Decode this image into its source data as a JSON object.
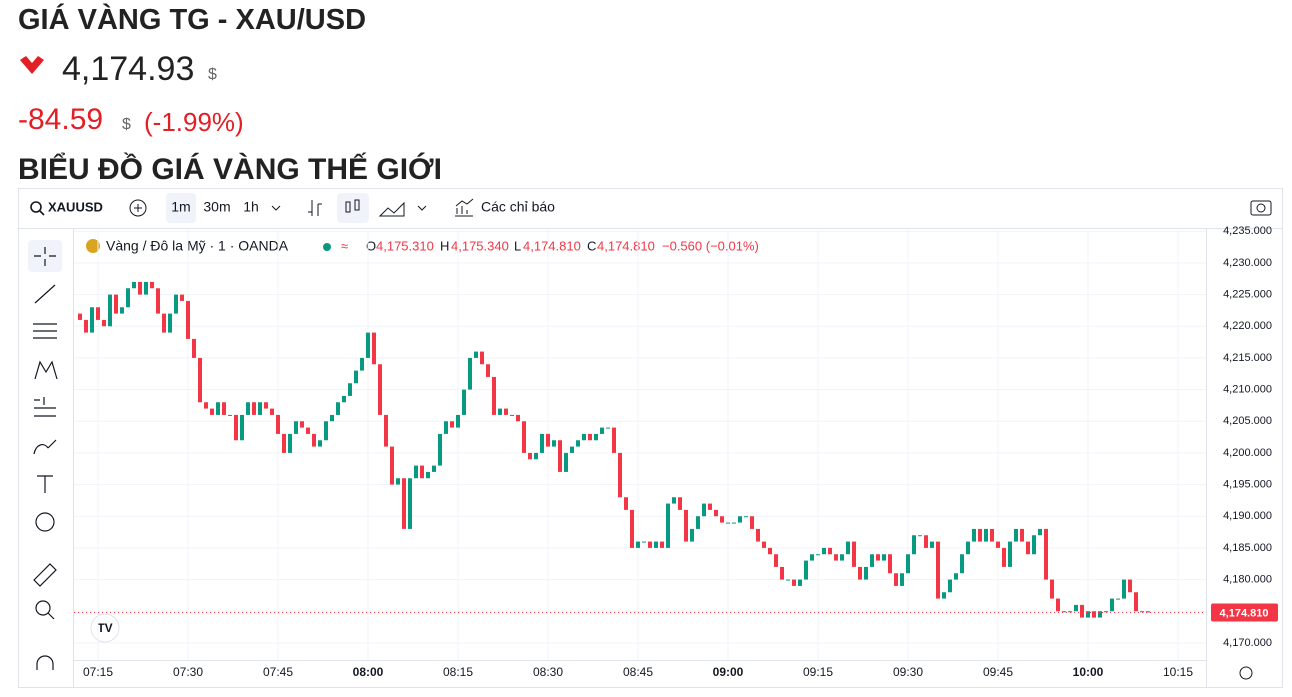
{
  "header": {
    "title": "GIÁ VÀNG TG - XAU/USD",
    "price": "4,174.93",
    "price_unit": "$",
    "change": "-84.59",
    "change_unit": "$",
    "change_pct": "(-1.99%)",
    "section_title": "BIỂU ĐỒ GIÁ VÀNG THẾ GIỚI"
  },
  "toolbar": {
    "symbol": "XAUUSD",
    "intervals": [
      "1m",
      "30m",
      "1h"
    ],
    "indicators": "Các chỉ báo"
  },
  "legend": {
    "instrument": "Vàng / Đô la Mỹ · 1 · OANDA",
    "o_key": "O",
    "o": "4,175.310",
    "h_key": "H",
    "h": "4,175.340",
    "l_key": "L",
    "l": "4,174.810",
    "c_key": "C",
    "c": "4,174.810",
    "change": "−0.560 (−0.01%)"
  },
  "chart_data": {
    "type": "candlestick",
    "up_color": "#089981",
    "down_color": "#f23645",
    "x": [
      "07:12",
      "07:13",
      "07:14",
      "07:15",
      "07:16",
      "07:17",
      "07:18",
      "07:19",
      "07:20",
      "07:21",
      "07:22",
      "07:23",
      "07:24",
      "07:25",
      "07:26",
      "07:27",
      "07:28",
      "07:29",
      "07:30",
      "07:31",
      "07:32",
      "07:33",
      "07:34",
      "07:35",
      "07:36",
      "07:37",
      "07:38",
      "07:39",
      "07:40",
      "07:41",
      "07:42",
      "07:43",
      "07:44",
      "07:45",
      "07:46",
      "07:47",
      "07:48",
      "07:49",
      "07:50",
      "07:51",
      "07:52",
      "07:53",
      "07:54",
      "07:55",
      "07:56",
      "07:57",
      "07:58",
      "07:59",
      "08:00",
      "08:01",
      "08:02",
      "08:03",
      "08:04",
      "08:05",
      "08:06",
      "08:07",
      "08:08",
      "08:09",
      "08:10",
      "08:11",
      "08:12",
      "08:13",
      "08:14",
      "08:15",
      "08:16",
      "08:17",
      "08:18",
      "08:19",
      "08:20",
      "08:21",
      "08:22",
      "08:23",
      "08:24",
      "08:25",
      "08:26",
      "08:27",
      "08:28",
      "08:29",
      "08:30",
      "08:31",
      "08:32",
      "08:33",
      "08:34",
      "08:35",
      "08:36",
      "08:37",
      "08:38",
      "08:39",
      "08:40",
      "08:41",
      "08:42",
      "08:43",
      "08:44",
      "08:45",
      "08:46",
      "08:47",
      "08:48",
      "08:49",
      "08:50",
      "08:51",
      "08:52",
      "08:53",
      "08:54",
      "08:55",
      "08:56",
      "08:57",
      "08:58",
      "08:59",
      "09:00",
      "09:01",
      "09:02",
      "09:03",
      "09:04",
      "09:05",
      "09:06",
      "09:07",
      "09:08",
      "09:09",
      "09:10",
      "09:11",
      "09:12",
      "09:13",
      "09:14",
      "09:15",
      "09:16",
      "09:17",
      "09:18",
      "09:19",
      "09:20",
      "09:21",
      "09:22",
      "09:23",
      "09:24",
      "09:25",
      "09:26",
      "09:27",
      "09:28",
      "09:29",
      "09:30",
      "09:31",
      "09:32",
      "09:33",
      "09:34",
      "09:35",
      "09:36",
      "09:37",
      "09:38",
      "09:39",
      "09:40",
      "09:41",
      "09:42",
      "09:43",
      "09:44",
      "09:45",
      "09:46",
      "09:47",
      "09:48",
      "09:49",
      "09:50",
      "09:51",
      "09:52",
      "09:53",
      "09:54",
      "09:55",
      "09:56",
      "09:57",
      "09:58",
      "09:59",
      "10:00",
      "10:01",
      "10:02",
      "10:03",
      "10:04",
      "10:05",
      "10:06",
      "10:07",
      "10:08",
      "10:09",
      "10:10"
    ],
    "open": [
      4222,
      4221,
      4219,
      4223,
      4221,
      4220,
      4225,
      4222,
      4223,
      4226,
      4227,
      4225,
      4227,
      4226,
      4222,
      4219,
      4222,
      4225,
      4224,
      4218,
      4215,
      4208,
      4207,
      4206,
      4208,
      4206,
      4206,
      4202,
      4206,
      4208,
      4206,
      4208,
      4207,
      4206,
      4203,
      4200,
      4203,
      4205,
      4204,
      4203,
      4201,
      4202,
      4205,
      4206,
      4208,
      4209,
      4211,
      4213,
      4215,
      4219,
      4214,
      4206,
      4201,
      4195,
      4196,
      4188,
      4196,
      4198,
      4196,
      4197,
      4198,
      4203,
      4205,
      4204,
      4206,
      4210,
      4215,
      4216,
      4214,
      4212,
      4206,
      4207,
      4206,
      4206,
      4205,
      4200,
      4199,
      4200,
      4203,
      4201,
      4202,
      4197,
      4200,
      4201,
      4202,
      4203,
      4202,
      4203,
      4204,
      4204,
      4200,
      4193,
      4191,
      4185,
      4186,
      4186,
      4185,
      4186,
      4185,
      4192,
      4193,
      4191,
      4186,
      4188,
      4190,
      4192,
      4191,
      4190,
      4189,
      4189,
      4189,
      4190,
      4190,
      4188,
      4186,
      4185,
      4184,
      4182,
      4180,
      4180,
      4179,
      4180,
      4183,
      4184,
      4184,
      4185,
      4184,
      4183,
      4184,
      4186,
      4182,
      4180,
      4182,
      4184,
      4183,
      4184,
      4181,
      4179,
      4181,
      4184,
      4187,
      4187,
      4185,
      4186,
      4177,
      4178,
      4180,
      4181,
      4184,
      4186,
      4188,
      4186,
      4188,
      4186,
      4185,
      4182,
      4186,
      4188,
      4186,
      4184,
      4187,
      4188,
      4180,
      4177,
      4175,
      4175,
      4175,
      4176,
      4174,
      4175,
      4174,
      4175,
      4175,
      4177,
      4177,
      4180,
      4178,
      4175,
      4175
    ],
    "close": [
      4221,
      4219,
      4223,
      4221,
      4220,
      4225,
      4222,
      4223,
      4226,
      4227,
      4225,
      4227,
      4226,
      4222,
      4219,
      4222,
      4225,
      4224,
      4218,
      4215,
      4208,
      4207,
      4206,
      4208,
      4206,
      4206,
      4202,
      4206,
      4208,
      4206,
      4208,
      4207,
      4206,
      4203,
      4200,
      4203,
      4205,
      4204,
      4203,
      4201,
      4202,
      4205,
      4206,
      4208,
      4209,
      4211,
      4213,
      4215,
      4219,
      4214,
      4206,
      4201,
      4195,
      4196,
      4188,
      4196,
      4198,
      4196,
      4197,
      4198,
      4203,
      4205,
      4204,
      4206,
      4210,
      4215,
      4216,
      4214,
      4212,
      4206,
      4207,
      4206,
      4206,
      4205,
      4200,
      4199,
      4200,
      4203,
      4201,
      4202,
      4197,
      4200,
      4201,
      4202,
      4203,
      4202,
      4203,
      4204,
      4204,
      4200,
      4193,
      4191,
      4185,
      4186,
      4186,
      4185,
      4186,
      4185,
      4192,
      4193,
      4191,
      4186,
      4188,
      4190,
      4192,
      4191,
      4190,
      4189,
      4189,
      4189,
      4190,
      4190,
      4188,
      4186,
      4185,
      4184,
      4182,
      4180,
      4180,
      4179,
      4180,
      4183,
      4184,
      4184,
      4185,
      4184,
      4183,
      4184,
      4186,
      4182,
      4180,
      4182,
      4184,
      4183,
      4184,
      4181,
      4179,
      4181,
      4184,
      4187,
      4187,
      4185,
      4186,
      4177,
      4178,
      4180,
      4181,
      4184,
      4186,
      4188,
      4186,
      4188,
      4186,
      4185,
      4182,
      4186,
      4188,
      4186,
      4184,
      4187,
      4188,
      4180,
      4177,
      4175,
      4175,
      4175,
      4176,
      4174,
      4175,
      4174,
      4175,
      4175,
      4177,
      4177,
      4180,
      4178,
      4175,
      4175,
      4174.81
    ],
    "xlim": [
      "07:11",
      "10:19"
    ],
    "xticks": [
      "07:15",
      "07:30",
      "07:45",
      "08:00",
      "08:15",
      "08:30",
      "08:45",
      "09:00",
      "09:15",
      "09:30",
      "09:45",
      "10:00",
      "10:15"
    ],
    "ylim": [
      4167.3,
      4235.2
    ],
    "yticks": [
      {
        "value": 4170,
        "label": "4,170.000"
      },
      {
        "value": 4175,
        "label": "4,175.000"
      },
      {
        "value": 4180,
        "label": "4,180.000"
      },
      {
        "value": 4185,
        "label": "4,185.000"
      },
      {
        "value": 4190,
        "label": "4,190.000"
      },
      {
        "value": 4195,
        "label": "4,195.000"
      },
      {
        "value": 4200,
        "label": "4,200.000"
      },
      {
        "value": 4205,
        "label": "4,205.000"
      },
      {
        "value": 4210,
        "label": "4,210.000"
      },
      {
        "value": 4215,
        "label": "4,215.000"
      },
      {
        "value": 4220,
        "label": "4,220.000"
      },
      {
        "value": 4225,
        "label": "4,225.000"
      },
      {
        "value": 4230,
        "label": "4,230.000"
      },
      {
        "value": 4235,
        "label": "4,235.000"
      }
    ],
    "price_label": {
      "value": 4174.81,
      "label": "4,174.810"
    }
  }
}
